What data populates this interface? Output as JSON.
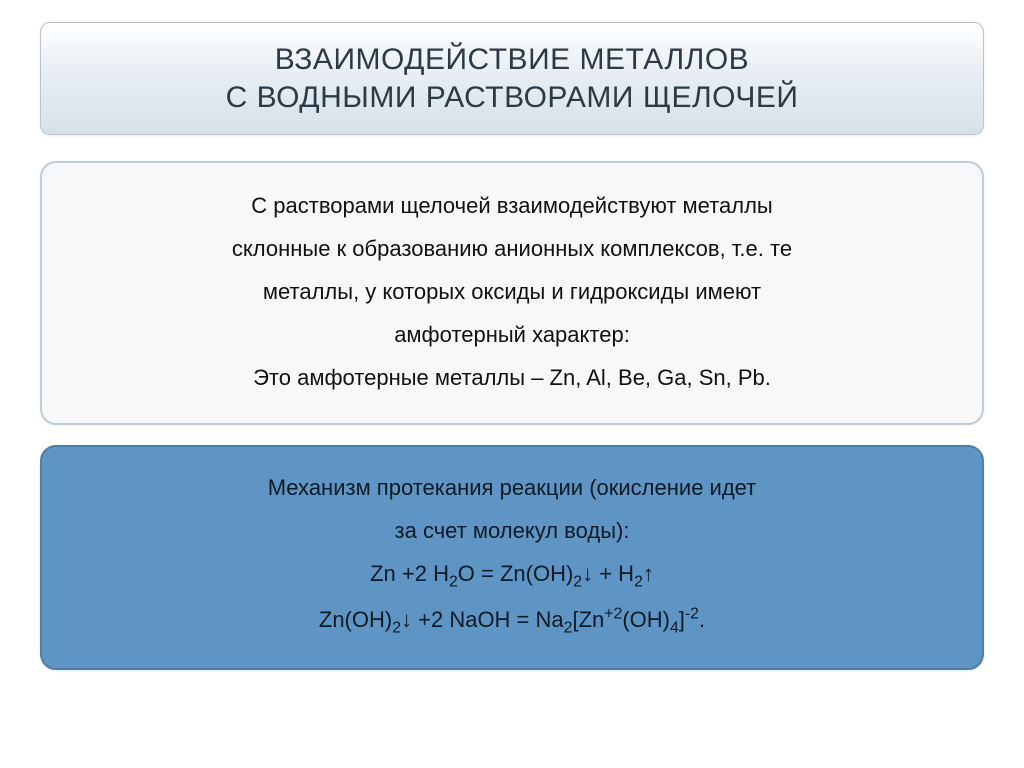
{
  "title": {
    "line1": "ВЗАИМОДЕЙСТВИЕ МЕТАЛЛОВ",
    "line2": "С ВОДНЫМИ РАСТВОРАМИ ЩЕЛОЧЕЙ"
  },
  "box1": {
    "p1": "С растворами щелочей взаимодействуют металлы",
    "p2": "склонные к образованию анионных комплексов, т.е. те",
    "p3": "металлы, у которых оксиды и гидроксиды имеют",
    "p4": "амфотерный характер:",
    "p5": "Это амфотерные металлы – Zn, Al, Be, Ga, Sn, Pb."
  },
  "box2": {
    "p1": "Механизм протекания реакции (окисление идет",
    "p2": "за счет молекул воды):",
    "eq1_pre": "Zn +2 H",
    "eq1_sub1": "2",
    "eq1_mid1": "O = Zn(OH)",
    "eq1_sub2": "2",
    "eq1_mid2": "↓  +  H",
    "eq1_sub3": "2",
    "eq1_end": "↑",
    "eq2_pre": "Zn(OH)",
    "eq2_sub1": "2",
    "eq2_mid1": "↓ +2 NaOH = Na",
    "eq2_sub2": "2",
    "eq2_mid2": "[Zn",
    "eq2_sup1": "+2",
    "eq2_mid3": "(OH)",
    "eq2_sub3": "4",
    "eq2_mid4": "]",
    "eq2_sup2": "-2",
    "eq2_end": "."
  },
  "style": {
    "title_fontsize": 30,
    "body_fontsize": 22,
    "title_bg_top": "#ffffff",
    "title_bg_bottom": "#d5e1ea",
    "title_border": "#b8c4cf",
    "title_color": "#2b3a44",
    "light_bg": "#f6f8fa",
    "light_border": "#bfcdd8",
    "light_text": "#111111",
    "blue_bg": "#5f95c5",
    "blue_border": "#4f7ea5",
    "blue_text": "#0b1a24",
    "page_bg": "#ffffff",
    "border_radius": 16
  }
}
